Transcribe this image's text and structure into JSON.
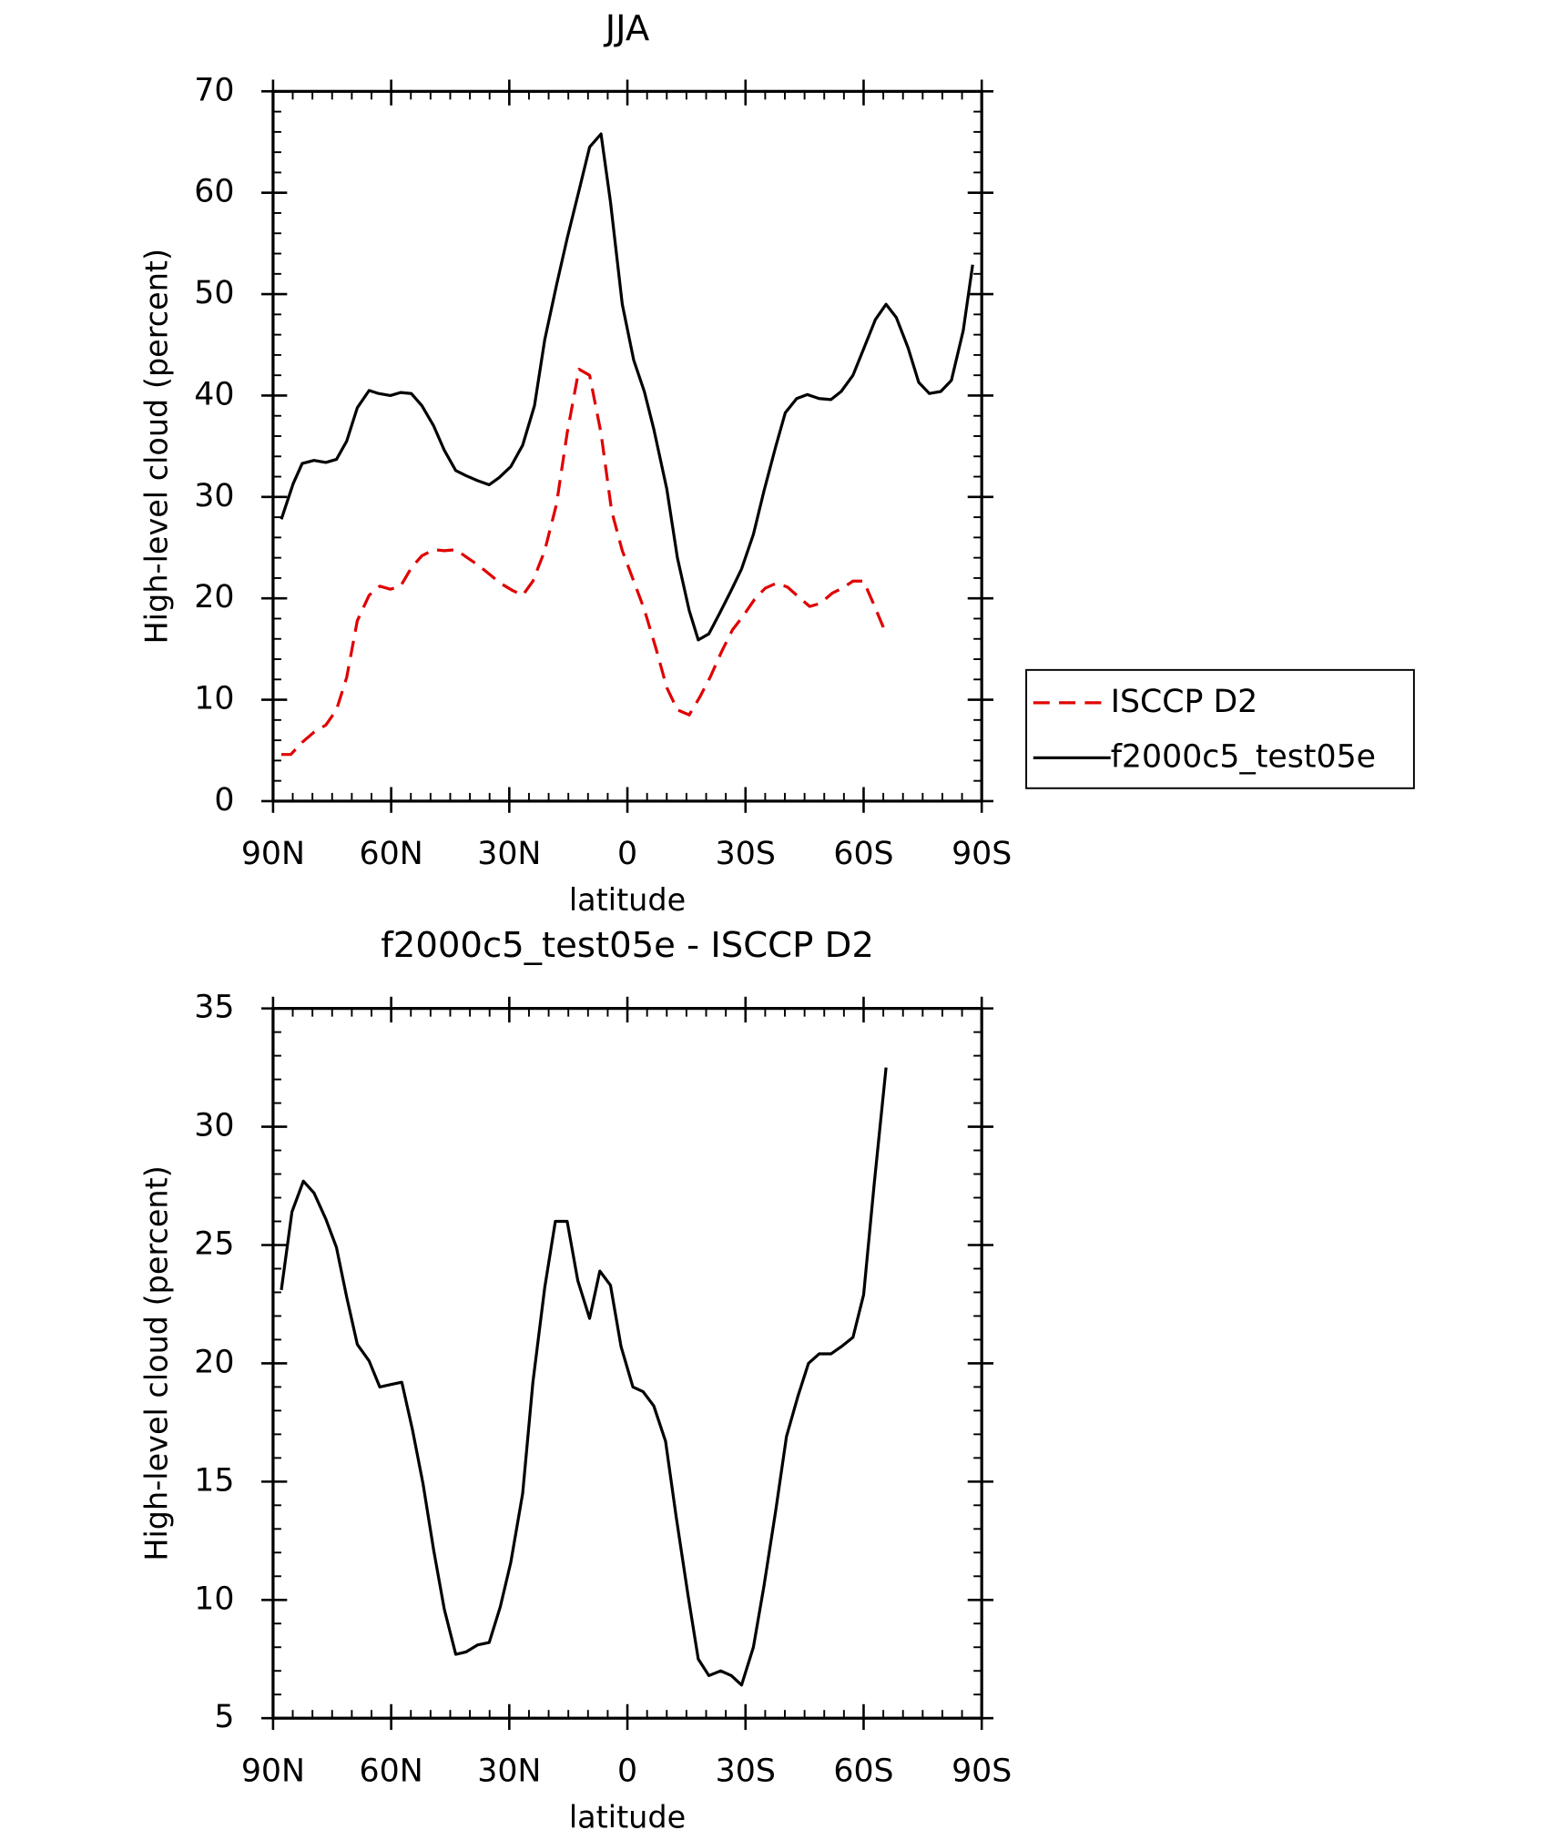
{
  "chart_data": [
    {
      "type": "line",
      "title": "JJA",
      "xlabel": "latitude",
      "ylabel": "High-level cloud (percent)",
      "xlim": [
        90,
        -90
      ],
      "xticks": [
        {
          "value": 90,
          "label": "90N"
        },
        {
          "value": 60,
          "label": "60N"
        },
        {
          "value": 30,
          "label": "30N"
        },
        0,
        {
          "value": -30,
          "label": "30S"
        },
        {
          "value": -60,
          "label": "60S"
        },
        {
          "value": -90,
          "label": "90S"
        }
      ],
      "ylim": [
        0,
        70
      ],
      "yticks": [
        0,
        10,
        20,
        30,
        40,
        50,
        60,
        70
      ],
      "legend": "right",
      "series": [
        {
          "name": "ISCCP D2",
          "color": "#e00000",
          "line_style": "dashed",
          "x": [
            87.9,
            85.5,
            82.6,
            79.6,
            76.6,
            73.9,
            71.3,
            68.6,
            65.6,
            62.9,
            60.2,
            57.6,
            54.9,
            52.2,
            49.2,
            46.5,
            43.6,
            41.0,
            38.0,
            35.1,
            32.3,
            29.3,
            26.6,
            24.0,
            21.0,
            18.0,
            15.3,
            12.3,
            9.6,
            6.7,
            4.0,
            1.3,
            -1.6,
            -4.3,
            -7.3,
            -10.0,
            -12.7,
            -15.7,
            -18.3,
            -21.0,
            -24.0,
            -26.7,
            -29.3,
            -32.3,
            -35.0,
            -37.9,
            -40.7,
            -43.6,
            -46.3,
            -49.0,
            -52.0,
            -54.6,
            -57.3,
            -60.0,
            -62.7,
            -65.7
          ],
          "values": [
            4.6,
            4.6,
            5.8,
            6.8,
            7.5,
            9.0,
            12.2,
            17.8,
            20.3,
            21.2,
            20.9,
            21.2,
            23.0,
            24.2,
            24.8,
            24.7,
            24.8,
            24.1,
            23.3,
            22.4,
            21.5,
            20.8,
            20.3,
            21.7,
            24.7,
            29.3,
            36.3,
            42.6,
            42.0,
            36.3,
            28.6,
            24.7,
            21.7,
            18.9,
            15.0,
            11.2,
            9.0,
            8.5,
            10.2,
            12.2,
            14.8,
            16.9,
            18.2,
            19.9,
            21.0,
            21.5,
            21.1,
            20.1,
            19.2,
            19.5,
            20.5,
            21.0,
            21.7,
            21.7,
            19.3,
            16.5
          ]
        },
        {
          "name": "f2000c5_test05e",
          "color": "#000000",
          "line_style": "solid",
          "x": [
            87.9,
            84.9,
            82.6,
            79.6,
            76.6,
            73.9,
            71.3,
            68.6,
            65.6,
            63.2,
            60.2,
            57.6,
            54.9,
            52.2,
            49.2,
            46.5,
            43.6,
            41.0,
            38.0,
            35.1,
            32.6,
            29.6,
            26.6,
            23.6,
            21.0,
            18.0,
            15.3,
            12.3,
            9.6,
            6.7,
            4.3,
            1.3,
            -1.6,
            -4.3,
            -6.7,
            -10.0,
            -12.7,
            -15.7,
            -18.0,
            -20.7,
            -23.4,
            -26.4,
            -29.0,
            -32.0,
            -34.7,
            -37.7,
            -40.1,
            -43.0,
            -45.7,
            -48.7,
            -51.7,
            -54.3,
            -57.3,
            -60.0,
            -63.0,
            -65.7,
            -68.3,
            -71.3,
            -74.0,
            -76.7,
            -79.6,
            -82.3,
            -85.3,
            -87.7
          ],
          "values": [
            27.8,
            31.3,
            33.3,
            33.6,
            33.4,
            33.7,
            35.5,
            38.8,
            40.5,
            40.2,
            40.0,
            40.3,
            40.2,
            39.0,
            37.0,
            34.6,
            32.6,
            32.1,
            31.6,
            31.2,
            31.9,
            33.0,
            35.1,
            39.0,
            45.5,
            50.9,
            55.5,
            60.2,
            64.5,
            65.8,
            59.1,
            49.0,
            43.5,
            40.4,
            36.7,
            30.8,
            24.0,
            18.8,
            15.9,
            16.5,
            18.5,
            20.8,
            22.9,
            26.3,
            30.6,
            35.0,
            38.3,
            39.7,
            40.1,
            39.7,
            39.6,
            40.4,
            42.0,
            44.6,
            47.5,
            49.0,
            47.7,
            44.7,
            41.3,
            40.2,
            40.4,
            41.5,
            46.4,
            52.9
          ]
        }
      ]
    },
    {
      "type": "line",
      "title": "f2000c5_test05e - ISCCP D2",
      "xlabel": "latitude",
      "ylabel": "High-level cloud (percent)",
      "xlim": [
        90,
        -90
      ],
      "xticks": [
        {
          "value": 90,
          "label": "90N"
        },
        {
          "value": 60,
          "label": "60N"
        },
        {
          "value": 30,
          "label": "30N"
        },
        0,
        {
          "value": -30,
          "label": "30S"
        },
        {
          "value": -60,
          "label": "60S"
        },
        {
          "value": -90,
          "label": "90S"
        }
      ],
      "ylim": [
        5,
        35
      ],
      "yticks": [
        5,
        10,
        15,
        20,
        25,
        30,
        35
      ],
      "series": [
        {
          "color": "#000000",
          "line_style": "solid",
          "x": [
            87.9,
            85.2,
            82.3,
            79.6,
            76.6,
            73.9,
            71.3,
            68.6,
            65.6,
            62.9,
            60.2,
            57.3,
            54.6,
            51.9,
            49.2,
            46.5,
            43.6,
            41.0,
            38.0,
            35.1,
            32.3,
            29.6,
            26.6,
            24.0,
            21.0,
            18.3,
            15.3,
            12.6,
            9.6,
            7.0,
            4.3,
            1.6,
            -1.4,
            -4.0,
            -6.7,
            -9.7,
            -12.4,
            -15.4,
            -18.0,
            -20.7,
            -23.7,
            -26.4,
            -29.0,
            -32.0,
            -34.7,
            -37.7,
            -40.4,
            -43.3,
            -46.0,
            -48.7,
            -51.7,
            -54.3,
            -57.3,
            -60.0,
            -62.7,
            -65.7
          ],
          "values": [
            23.1,
            26.4,
            27.7,
            27.2,
            26.1,
            24.9,
            22.8,
            20.8,
            20.1,
            19.0,
            19.1,
            19.2,
            17.2,
            14.9,
            12.1,
            9.6,
            7.7,
            7.8,
            8.1,
            8.2,
            9.7,
            11.6,
            14.5,
            19.2,
            23.2,
            26.0,
            26.0,
            23.5,
            21.9,
            23.9,
            23.3,
            20.7,
            19.0,
            18.8,
            18.2,
            16.7,
            13.5,
            10.2,
            7.5,
            6.8,
            7.0,
            6.8,
            6.4,
            8.0,
            10.6,
            13.8,
            16.9,
            18.6,
            20.0,
            20.4,
            20.4,
            20.7,
            21.1,
            22.9,
            27.6,
            32.5
          ]
        }
      ]
    }
  ]
}
